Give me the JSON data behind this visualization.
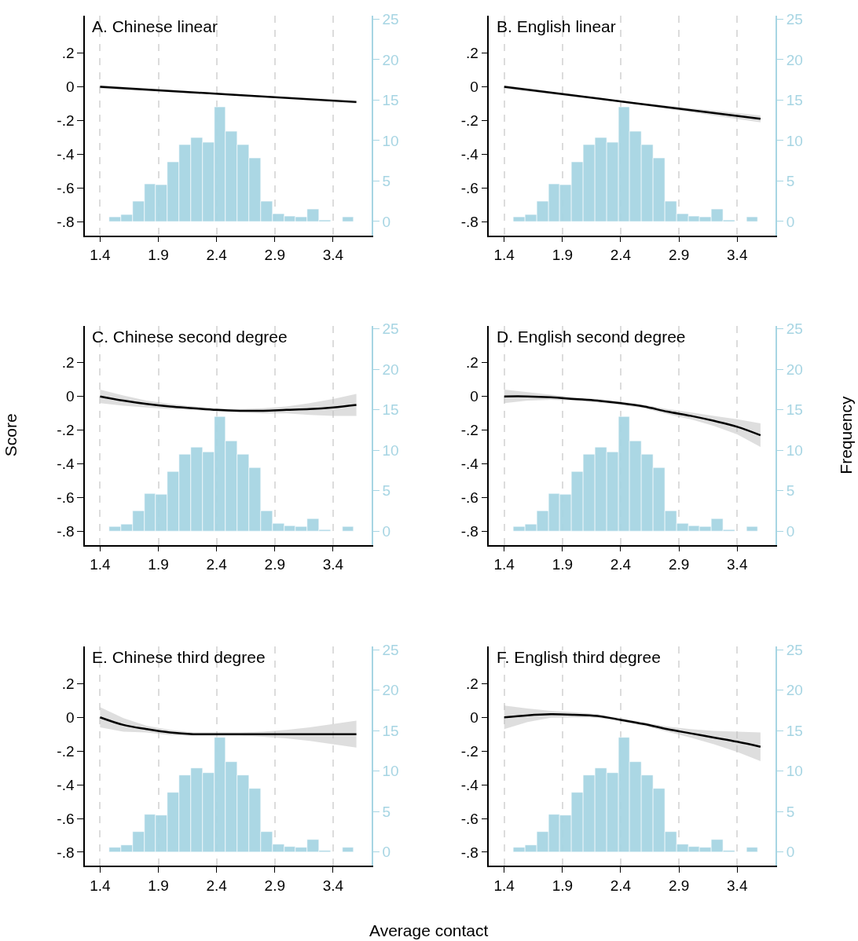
{
  "chart_data": [
    {
      "type": "line",
      "title": "A. Chinese linear",
      "xlim": [
        1.27,
        3.73
      ],
      "xticks": [
        1.4,
        1.9,
        2.4,
        2.9,
        3.4
      ],
      "ylim": [
        -0.88,
        0.42
      ],
      "yticks": [
        {
          "value": 0.2,
          "label": ".2"
        },
        0,
        {
          "value": -0.2,
          "label": "-.2"
        },
        {
          "value": -0.4,
          "label": "-.4"
        },
        {
          "value": -0.6,
          "label": "-.6"
        },
        {
          "value": -0.8,
          "label": "-.8"
        }
      ],
      "y2lim": [
        -1.7,
        25.4
      ],
      "y2ticks": [
        0,
        5,
        10,
        15,
        20,
        25
      ],
      "grid": "x",
      "series": [
        {
          "type": "histogram",
          "axis": "y2",
          "color": "#a7d5e3",
          "bins": [
            1.48,
            1.58,
            1.68,
            1.78,
            1.88,
            1.98,
            2.08,
            2.18,
            2.28,
            2.38,
            2.48,
            2.58,
            2.68,
            2.78,
            2.88,
            2.98,
            3.08,
            3.18,
            3.28,
            3.38,
            3.48,
            3.58
          ],
          "values": [
            0.5,
            0.8,
            2.5,
            4.6,
            4.5,
            7.3,
            9.5,
            10.4,
            9.8,
            14.1,
            11.1,
            9.5,
            7.8,
            2.5,
            0.9,
            0.6,
            0.5,
            1.5,
            0.2,
            0,
            0.5
          ]
        },
        {
          "color": "#000000",
          "x": [
            1.4,
            2.5,
            3.6
          ],
          "values": [
            0,
            -0.045,
            -0.09
          ],
          "lower": [
            -0.01,
            -0.05,
            -0.1
          ],
          "upper": [
            0.01,
            -0.04,
            -0.08
          ]
        }
      ]
    },
    {
      "type": "line",
      "title": "B. English linear",
      "xlim": [
        1.27,
        3.73
      ],
      "xticks": [
        1.4,
        1.9,
        2.4,
        2.9,
        3.4
      ],
      "ylim": [
        -0.88,
        0.42
      ],
      "yticks": [
        {
          "value": 0.2,
          "label": ".2"
        },
        0,
        {
          "value": -0.2,
          "label": "-.2"
        },
        {
          "value": -0.4,
          "label": "-.4"
        },
        {
          "value": -0.6,
          "label": "-.6"
        },
        {
          "value": -0.8,
          "label": "-.8"
        }
      ],
      "y2lim": [
        -1.7,
        25.4
      ],
      "y2ticks": [
        0,
        5,
        10,
        15,
        20,
        25
      ],
      "grid": "x",
      "series": [
        {
          "type": "histogram",
          "axis": "y2",
          "color": "#a7d5e3",
          "bins": [
            1.48,
            1.58,
            1.68,
            1.78,
            1.88,
            1.98,
            2.08,
            2.18,
            2.28,
            2.38,
            2.48,
            2.58,
            2.68,
            2.78,
            2.88,
            2.98,
            3.08,
            3.18,
            3.28,
            3.38,
            3.48,
            3.58
          ],
          "values": [
            0.5,
            0.8,
            2.5,
            4.6,
            4.5,
            7.3,
            9.5,
            10.4,
            9.8,
            14.1,
            11.1,
            9.5,
            7.8,
            2.5,
            0.9,
            0.6,
            0.5,
            1.5,
            0.2,
            0,
            0.5
          ]
        },
        {
          "color": "#000000",
          "x": [
            1.4,
            2.5,
            3.6
          ],
          "values": [
            0,
            -0.095,
            -0.19
          ],
          "lower": [
            -0.01,
            -0.1,
            -0.21
          ],
          "upper": [
            0.01,
            -0.09,
            -0.17
          ]
        }
      ]
    },
    {
      "type": "line",
      "title": "C. Chinese second degree",
      "ylabel": "Score",
      "xlim": [
        1.27,
        3.73
      ],
      "xticks": [
        1.4,
        1.9,
        2.4,
        2.9,
        3.4
      ],
      "ylim": [
        -0.88,
        0.42
      ],
      "yticks": [
        {
          "value": 0.2,
          "label": ".2"
        },
        0,
        {
          "value": -0.2,
          "label": "-.2"
        },
        {
          "value": -0.4,
          "label": "-.4"
        },
        {
          "value": -0.6,
          "label": "-.6"
        },
        {
          "value": -0.8,
          "label": "-.8"
        }
      ],
      "y2lim": [
        -1.7,
        25.4
      ],
      "y2ticks": [
        0,
        5,
        10,
        15,
        20,
        25
      ],
      "grid": "x",
      "series": [
        {
          "type": "histogram",
          "axis": "y2",
          "color": "#a7d5e3",
          "bins": [
            1.48,
            1.58,
            1.68,
            1.78,
            1.88,
            1.98,
            2.08,
            2.18,
            2.28,
            2.38,
            2.48,
            2.58,
            2.68,
            2.78,
            2.88,
            2.98,
            3.08,
            3.18,
            3.28,
            3.38,
            3.48,
            3.58
          ],
          "values": [
            0.5,
            0.8,
            2.5,
            4.6,
            4.5,
            7.3,
            9.5,
            10.4,
            9.8,
            14.1,
            11.1,
            9.5,
            7.8,
            2.5,
            0.9,
            0.6,
            0.5,
            1.5,
            0.2,
            0,
            0.5
          ]
        },
        {
          "color": "#000000",
          "x": [
            1.4,
            1.6,
            1.8,
            2.0,
            2.2,
            2.4,
            2.6,
            2.8,
            3.0,
            3.2,
            3.4,
            3.6
          ],
          "values": [
            0,
            -0.025,
            -0.045,
            -0.06,
            -0.07,
            -0.08,
            -0.085,
            -0.085,
            -0.08,
            -0.075,
            -0.065,
            -0.05
          ],
          "lower": [
            -0.04,
            -0.055,
            -0.065,
            -0.075,
            -0.08,
            -0.09,
            -0.095,
            -0.1,
            -0.1,
            -0.11,
            -0.115,
            -0.115
          ],
          "upper": [
            0.04,
            0.005,
            -0.025,
            -0.045,
            -0.06,
            -0.07,
            -0.075,
            -0.07,
            -0.06,
            -0.04,
            -0.015,
            0.015
          ]
        }
      ]
    },
    {
      "type": "line",
      "title": "D. English second degree",
      "y2label": "Frequency",
      "xlim": [
        1.27,
        3.73
      ],
      "xticks": [
        1.4,
        1.9,
        2.4,
        2.9,
        3.4
      ],
      "ylim": [
        -0.88,
        0.42
      ],
      "yticks": [
        {
          "value": 0.2,
          "label": ".2"
        },
        0,
        {
          "value": -0.2,
          "label": "-.2"
        },
        {
          "value": -0.4,
          "label": "-.4"
        },
        {
          "value": -0.6,
          "label": "-.6"
        },
        {
          "value": -0.8,
          "label": "-.8"
        }
      ],
      "y2lim": [
        -1.7,
        25.4
      ],
      "y2ticks": [
        0,
        5,
        10,
        15,
        20,
        25
      ],
      "grid": "x",
      "series": [
        {
          "type": "histogram",
          "axis": "y2",
          "color": "#a7d5e3",
          "bins": [
            1.48,
            1.58,
            1.68,
            1.78,
            1.88,
            1.98,
            2.08,
            2.18,
            2.28,
            2.38,
            2.48,
            2.58,
            2.68,
            2.78,
            2.88,
            2.98,
            3.08,
            3.18,
            3.28,
            3.38,
            3.48,
            3.58
          ],
          "values": [
            0.5,
            0.8,
            2.5,
            4.6,
            4.5,
            7.3,
            9.5,
            10.4,
            9.8,
            14.1,
            11.1,
            9.5,
            7.8,
            2.5,
            0.9,
            0.6,
            0.5,
            1.5,
            0.2,
            0,
            0.5
          ]
        },
        {
          "color": "#000000",
          "x": [
            1.4,
            1.6,
            1.8,
            2.0,
            2.2,
            2.4,
            2.6,
            2.8,
            3.0,
            3.2,
            3.4,
            3.6
          ],
          "values": [
            0,
            0,
            -0.005,
            -0.015,
            -0.025,
            -0.04,
            -0.06,
            -0.09,
            -0.115,
            -0.145,
            -0.18,
            -0.23
          ],
          "lower": [
            -0.04,
            -0.025,
            -0.02,
            -0.025,
            -0.035,
            -0.05,
            -0.07,
            -0.105,
            -0.135,
            -0.175,
            -0.225,
            -0.3
          ],
          "upper": [
            0.04,
            0.025,
            0.01,
            -0.005,
            -0.015,
            -0.03,
            -0.05,
            -0.075,
            -0.095,
            -0.115,
            -0.135,
            -0.16
          ]
        }
      ]
    },
    {
      "type": "line",
      "title": "E. Chinese third degree",
      "xlabel": "Average contact",
      "xlim": [
        1.27,
        3.73
      ],
      "xticks": [
        1.4,
        1.9,
        2.4,
        2.9,
        3.4
      ],
      "ylim": [
        -0.88,
        0.42
      ],
      "yticks": [
        {
          "value": 0.2,
          "label": ".2"
        },
        0,
        {
          "value": -0.2,
          "label": "-.2"
        },
        {
          "value": -0.4,
          "label": "-.4"
        },
        {
          "value": -0.6,
          "label": "-.6"
        },
        {
          "value": -0.8,
          "label": "-.8"
        }
      ],
      "y2lim": [
        -1.7,
        25.4
      ],
      "y2ticks": [
        0,
        5,
        10,
        15,
        20,
        25
      ],
      "grid": "x",
      "series": [
        {
          "type": "histogram",
          "axis": "y2",
          "color": "#a7d5e3",
          "bins": [
            1.48,
            1.58,
            1.68,
            1.78,
            1.88,
            1.98,
            2.08,
            2.18,
            2.28,
            2.38,
            2.48,
            2.58,
            2.68,
            2.78,
            2.88,
            2.98,
            3.08,
            3.18,
            3.28,
            3.38,
            3.48,
            3.58
          ],
          "values": [
            0.5,
            0.8,
            2.5,
            4.6,
            4.5,
            7.3,
            9.5,
            10.4,
            9.8,
            14.1,
            11.1,
            9.5,
            7.8,
            2.5,
            0.9,
            0.6,
            0.5,
            1.5,
            0.2,
            0,
            0.5
          ]
        },
        {
          "color": "#000000",
          "x": [
            1.4,
            1.6,
            1.8,
            2.0,
            2.2,
            2.4,
            2.6,
            2.8,
            3.0,
            3.2,
            3.4,
            3.6
          ],
          "values": [
            0,
            -0.045,
            -0.07,
            -0.09,
            -0.1,
            -0.1,
            -0.1,
            -0.1,
            -0.1,
            -0.1,
            -0.1,
            -0.1
          ],
          "lower": [
            -0.06,
            -0.085,
            -0.09,
            -0.105,
            -0.11,
            -0.11,
            -0.11,
            -0.115,
            -0.125,
            -0.14,
            -0.16,
            -0.18
          ],
          "upper": [
            0.06,
            -0.005,
            -0.05,
            -0.075,
            -0.09,
            -0.09,
            -0.09,
            -0.085,
            -0.075,
            -0.06,
            -0.04,
            -0.02
          ]
        }
      ]
    },
    {
      "type": "line",
      "title": "F. English third degree",
      "xlim": [
        1.27,
        3.73
      ],
      "xticks": [
        1.4,
        1.9,
        2.4,
        2.9,
        3.4
      ],
      "ylim": [
        -0.88,
        0.42
      ],
      "yticks": [
        {
          "value": 0.2,
          "label": ".2"
        },
        0,
        {
          "value": -0.2,
          "label": "-.2"
        },
        {
          "value": -0.4,
          "label": "-.4"
        },
        {
          "value": -0.6,
          "label": "-.6"
        },
        {
          "value": -0.8,
          "label": "-.8"
        }
      ],
      "y2lim": [
        -1.7,
        25.4
      ],
      "y2ticks": [
        0,
        5,
        10,
        15,
        20,
        25
      ],
      "grid": "x",
      "series": [
        {
          "type": "histogram",
          "axis": "y2",
          "color": "#a7d5e3",
          "bins": [
            1.48,
            1.58,
            1.68,
            1.78,
            1.88,
            1.98,
            2.08,
            2.18,
            2.28,
            2.38,
            2.48,
            2.58,
            2.68,
            2.78,
            2.88,
            2.98,
            3.08,
            3.18,
            3.28,
            3.38,
            3.48,
            3.58
          ],
          "values": [
            0.5,
            0.8,
            2.5,
            4.6,
            4.5,
            7.3,
            9.5,
            10.4,
            9.8,
            14.1,
            11.1,
            9.5,
            7.8,
            2.5,
            0.9,
            0.6,
            0.5,
            1.5,
            0.2,
            0,
            0.5
          ]
        },
        {
          "color": "#000000",
          "x": [
            1.4,
            1.6,
            1.8,
            2.0,
            2.2,
            2.4,
            2.6,
            2.8,
            3.0,
            3.2,
            3.4,
            3.6
          ],
          "values": [
            0,
            0.012,
            0.018,
            0.015,
            0.008,
            -0.015,
            -0.04,
            -0.07,
            -0.095,
            -0.12,
            -0.145,
            -0.175
          ],
          "lower": [
            -0.07,
            -0.028,
            -0.002,
            0,
            -0.002,
            -0.025,
            -0.05,
            -0.085,
            -0.12,
            -0.16,
            -0.205,
            -0.26
          ],
          "upper": [
            0.07,
            0.052,
            0.038,
            0.03,
            0.018,
            -0.005,
            -0.03,
            -0.055,
            -0.07,
            -0.08,
            -0.085,
            -0.09
          ]
        }
      ]
    }
  ]
}
